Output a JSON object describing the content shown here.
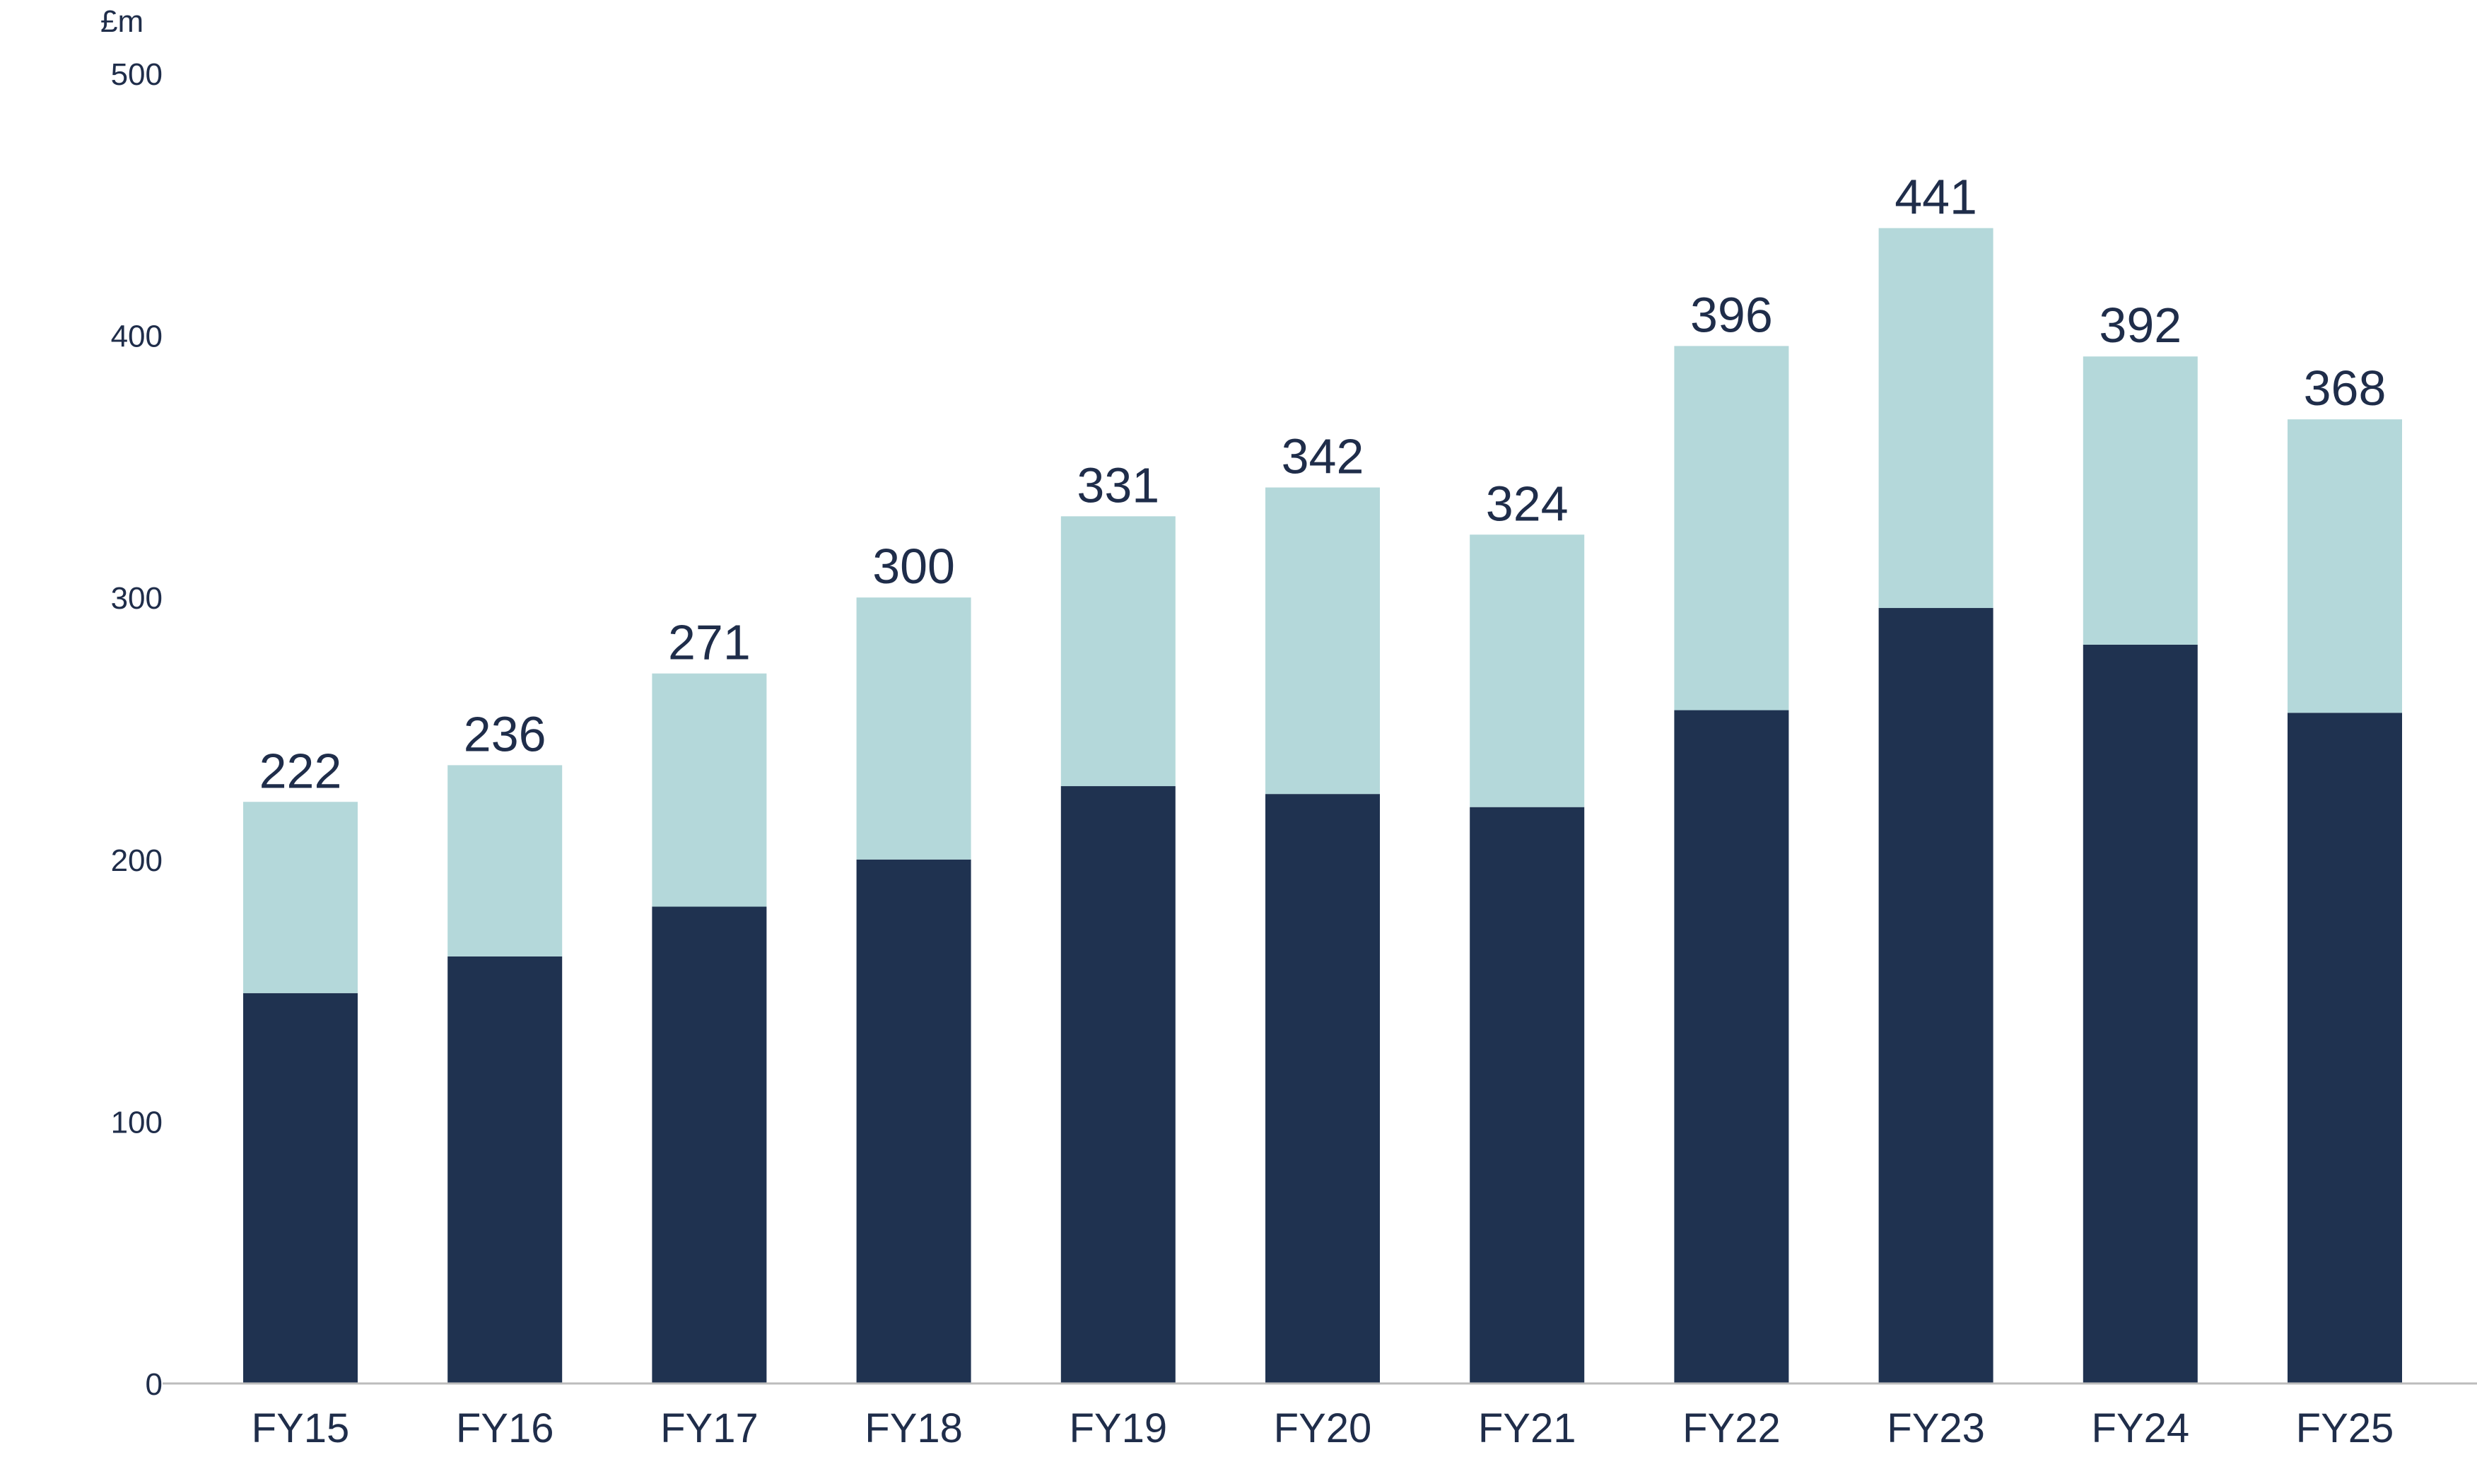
{
  "colors": {
    "lower": "#1f3250",
    "upper": "#b4d8da",
    "text": "#1f2d4a",
    "axis": "#bcbcbc",
    "background": "#ffffff"
  },
  "chart_data": {
    "type": "bar",
    "stacked": true,
    "unit": "£m",
    "title": "",
    "xlabel": "",
    "ylabel": "",
    "ylim": [
      0,
      500
    ],
    "yticks": [
      0,
      100,
      200,
      300,
      400,
      500
    ],
    "ytick_labels": [
      "0",
      "100",
      "200",
      "300",
      "400",
      "500"
    ],
    "grid": false,
    "legend": "none",
    "categories": [
      "FY15",
      "FY16",
      "FY17",
      "FY18",
      "FY19",
      "FY20",
      "FY21",
      "FY22",
      "FY23",
      "FY24",
      "FY25"
    ],
    "series": [
      {
        "values": [
          149,
          163,
          182,
          200,
          228,
          225,
          220,
          257,
          296,
          282,
          256
        ]
      },
      {
        "values": [
          73,
          73,
          89,
          100,
          103,
          117,
          104,
          139,
          145,
          110,
          112
        ]
      }
    ],
    "totals": [
      222,
      236,
      271,
      300,
      331,
      342,
      324,
      396,
      441,
      392,
      368
    ],
    "total_labels": [
      "222",
      "236",
      "271",
      "300",
      "331",
      "342",
      "324",
      "396",
      "441",
      "392",
      "368"
    ]
  }
}
